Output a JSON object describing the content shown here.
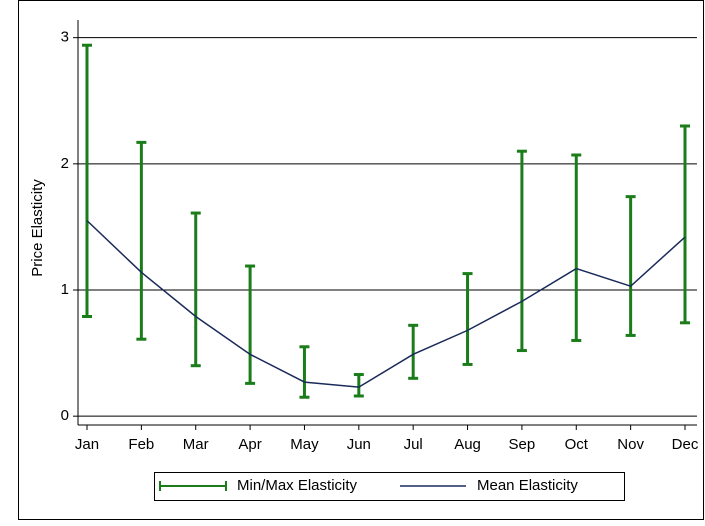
{
  "chart_data": {
    "type": "rangecap-line",
    "y_label": "Price Elasticity",
    "categories": [
      "Jan",
      "Feb",
      "Mar",
      "Apr",
      "May",
      "Jun",
      "Jul",
      "Aug",
      "Sep",
      "Oct",
      "Nov",
      "Dec"
    ],
    "series": [
      {
        "name": "Min/Max Elasticity",
        "color": "#1a7d1a",
        "low": [
          0.79,
          0.61,
          0.4,
          0.26,
          0.15,
          0.16,
          0.3,
          0.41,
          0.52,
          0.6,
          0.64,
          0.74
        ],
        "high": [
          2.94,
          2.17,
          1.61,
          1.19,
          0.55,
          0.33,
          0.72,
          1.13,
          2.1,
          2.07,
          1.74,
          2.3
        ]
      },
      {
        "name": "Mean Elasticity",
        "color": "#1a2a5a",
        "values": [
          1.55,
          1.14,
          0.79,
          0.49,
          0.27,
          0.23,
          0.49,
          0.68,
          0.91,
          1.17,
          1.03,
          1.42
        ]
      }
    ],
    "ylim": [
      -0.07,
      3.14
    ],
    "yticks": [
      0,
      1,
      2,
      3
    ],
    "grid": true
  }
}
